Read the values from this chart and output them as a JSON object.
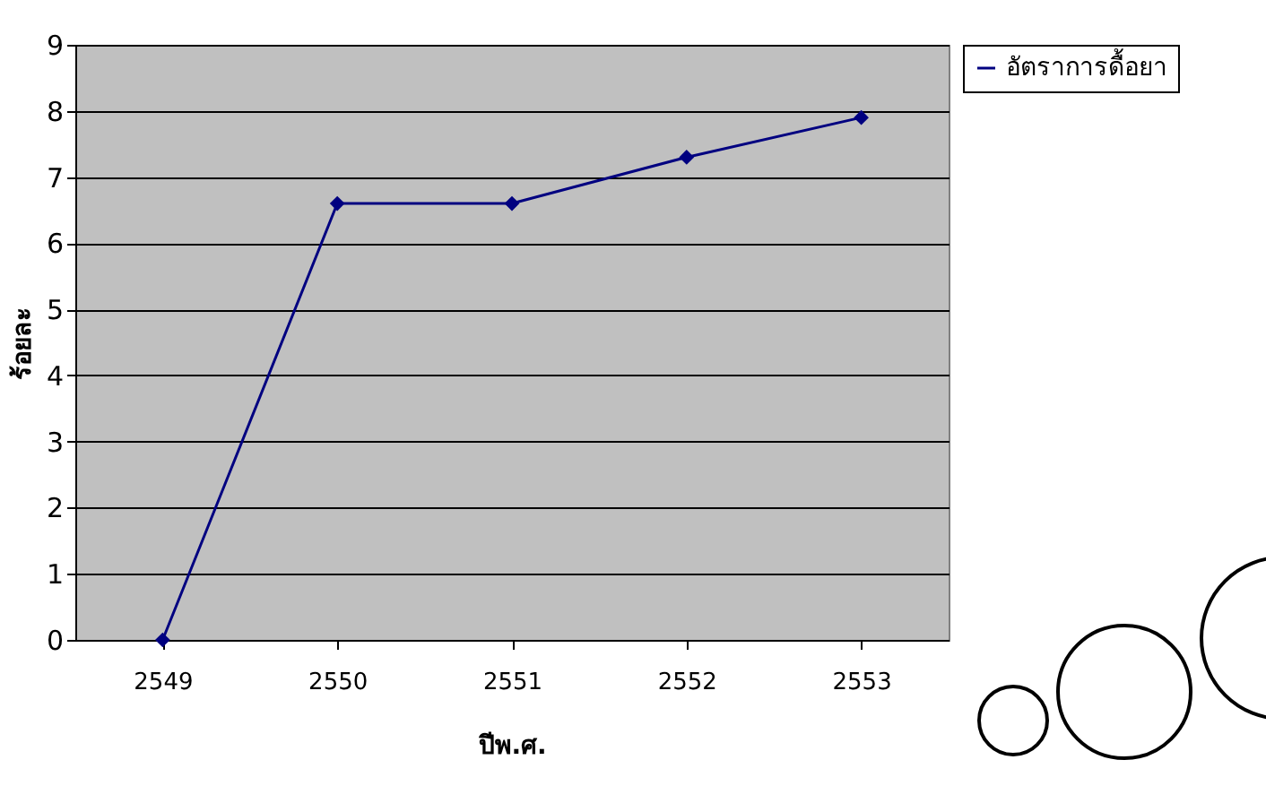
{
  "chart_data": {
    "type": "line",
    "xlabel": "ปีพ.ศ.",
    "ylabel": "ร้อยละ",
    "categories": [
      "2549",
      "2550",
      "2551",
      "2552",
      "2553"
    ],
    "series": [
      {
        "name": "อัตราการดื้อยา",
        "color": "#000080",
        "values": [
          0,
          6.6,
          6.6,
          7.3,
          7.9
        ]
      }
    ],
    "ylim": [
      0,
      9
    ],
    "yticks": [
      0,
      1,
      2,
      3,
      4,
      5,
      6,
      7,
      8,
      9
    ],
    "grid": "y",
    "legend": "right",
    "marker": "diamond",
    "line_style": "solid"
  }
}
